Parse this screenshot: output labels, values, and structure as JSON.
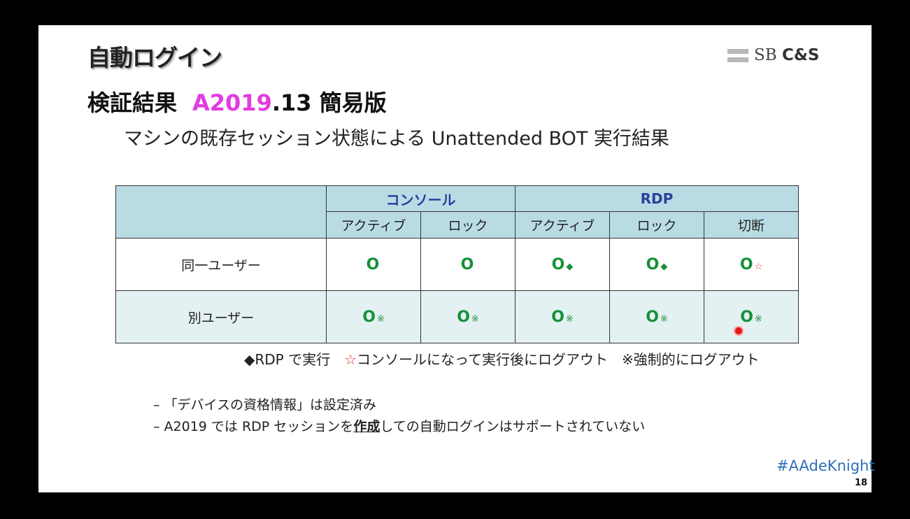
{
  "title": "自動ログイン",
  "logo": {
    "prefix": "SB",
    "suffix": "C&S"
  },
  "subtitle": {
    "prefix": "検証結果",
    "version": "A2019",
    "suffix": ".13 簡易版"
  },
  "caption": "マシンの既存セッション状態による Unattended BOT 実行結果",
  "table": {
    "groups": [
      "コンソール",
      "RDP"
    ],
    "columns": [
      "アクティブ",
      "ロック",
      "アクティブ",
      "ロック",
      "切断"
    ],
    "rows": [
      {
        "label": "同一ユーザー",
        "cells": [
          {
            "result": "O",
            "mark": ""
          },
          {
            "result": "O",
            "mark": ""
          },
          {
            "result": "O",
            "mark": "◆"
          },
          {
            "result": "O",
            "mark": "◆"
          },
          {
            "result": "O",
            "mark": "☆"
          }
        ]
      },
      {
        "label": "別ユーザー",
        "cells": [
          {
            "result": "O",
            "mark": "※"
          },
          {
            "result": "O",
            "mark": "※"
          },
          {
            "result": "O",
            "mark": "※"
          },
          {
            "result": "O",
            "mark": "※"
          },
          {
            "result": "O",
            "mark": "※"
          }
        ]
      }
    ]
  },
  "legend": {
    "diamond": "◆RDP で実行",
    "star_symbol": "☆",
    "star_text": "コンソールになって実行後にログアウト",
    "ref": "※強制的にログアウト"
  },
  "bullets": {
    "b1": "– 「デバイスの資格情報」は設定済み",
    "b2_pre": "– A2019 では RDP セッションを",
    "b2_bold": "作成",
    "b2_post": "しての自動ログインはサポートされていない"
  },
  "hashtag": "#AAdeKnight",
  "page_number": "18",
  "colors": {
    "version": "#e23be0",
    "group_header": "#2b3f9c",
    "header_bg": "#b9dce4",
    "alt_row_bg": "#e4f1f3",
    "result": "#16913a",
    "star": "#e0342a",
    "hashtag": "#2f6fb5"
  }
}
